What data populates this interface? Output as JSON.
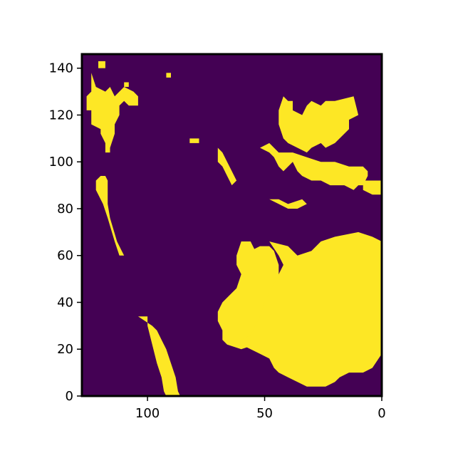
{
  "chart_data": {
    "type": "heatmap",
    "title": "",
    "xlabel": "",
    "ylabel": "",
    "xlim": [
      128,
      0
    ],
    "ylim": [
      0,
      146
    ],
    "x_inverted": true,
    "xticks": [
      {
        "value": 100,
        "label": "100"
      },
      {
        "value": 50,
        "label": "50"
      },
      {
        "value": 0,
        "label": "0"
      }
    ],
    "yticks": [
      {
        "value": 0,
        "label": "0"
      },
      {
        "value": 20,
        "label": "20"
      },
      {
        "value": 40,
        "label": "40"
      },
      {
        "value": 60,
        "label": "60"
      },
      {
        "value": 80,
        "label": "80"
      },
      {
        "value": 100,
        "label": "100"
      },
      {
        "value": 120,
        "label": "120"
      },
      {
        "value": 140,
        "label": "140"
      }
    ],
    "grid": false,
    "colormap": "viridis",
    "colors": {
      "background": "#440154",
      "land": "#fde725",
      "axes": "#000000"
    },
    "values": "binary land mask: 0 = water (purple), 1 = land (yellow)",
    "regions": [
      {
        "name": "north-america-west-coast",
        "value": 1,
        "polygon": [
          [
            124,
            138
          ],
          [
            122,
            132
          ],
          [
            118,
            130
          ],
          [
            116,
            132
          ],
          [
            114,
            128
          ],
          [
            110,
            132
          ],
          [
            106,
            130
          ],
          [
            104,
            128
          ],
          [
            104,
            124
          ],
          [
            108,
            124
          ],
          [
            110,
            126
          ],
          [
            112,
            124
          ],
          [
            112,
            120
          ],
          [
            114,
            116
          ],
          [
            114,
            112
          ],
          [
            116,
            106
          ],
          [
            116,
            104
          ],
          [
            118,
            104
          ],
          [
            118,
            108
          ],
          [
            120,
            112
          ],
          [
            120,
            114
          ],
          [
            124,
            116
          ],
          [
            124,
            122
          ],
          [
            126,
            122
          ],
          [
            126,
            128
          ],
          [
            124,
            130
          ]
        ]
      },
      {
        "name": "north-america-upper",
        "value": 1,
        "polygon": [
          [
            121,
            140
          ],
          [
            118,
            140
          ],
          [
            118,
            143
          ],
          [
            121,
            143
          ]
        ]
      },
      {
        "name": "baja-california",
        "value": 1,
        "polygon": [
          [
            122,
            92
          ],
          [
            120,
            94
          ],
          [
            118,
            94
          ],
          [
            117,
            92
          ],
          [
            117,
            82
          ],
          [
            116,
            76
          ],
          [
            113,
            66
          ],
          [
            111,
            62
          ],
          [
            110,
            60
          ],
          [
            112,
            60
          ],
          [
            114,
            66
          ],
          [
            117,
            76
          ],
          [
            119,
            82
          ],
          [
            122,
            88
          ]
        ]
      },
      {
        "name": "south-america-west-coast",
        "value": 1,
        "polygon": [
          [
            104,
            34
          ],
          [
            100,
            34
          ],
          [
            100,
            30
          ],
          [
            98,
            22
          ],
          [
            96,
            14
          ],
          [
            94,
            8
          ],
          [
            93,
            2
          ],
          [
            92,
            0
          ],
          [
            86,
            0
          ],
          [
            87,
            2
          ],
          [
            88,
            8
          ],
          [
            90,
            14
          ],
          [
            92,
            20
          ],
          [
            94,
            24
          ],
          [
            96,
            28
          ],
          [
            98,
            30
          ]
        ]
      },
      {
        "name": "europe-mainland",
        "value": 1,
        "polygon": [
          [
            42,
            128
          ],
          [
            40,
            126
          ],
          [
            38,
            126
          ],
          [
            38,
            122
          ],
          [
            34,
            120
          ],
          [
            32,
            124
          ],
          [
            30,
            126
          ],
          [
            26,
            124
          ],
          [
            24,
            126
          ],
          [
            20,
            126
          ],
          [
            12,
            128
          ],
          [
            11,
            124
          ],
          [
            10,
            120
          ],
          [
            14,
            118
          ],
          [
            14,
            114
          ],
          [
            20,
            108
          ],
          [
            24,
            106
          ],
          [
            26,
            108
          ],
          [
            30,
            106
          ],
          [
            32,
            104
          ],
          [
            36,
            106
          ],
          [
            40,
            108
          ],
          [
            42,
            110
          ],
          [
            44,
            116
          ],
          [
            44,
            122
          ]
        ]
      },
      {
        "name": "iberia-and-mediterranean",
        "value": 1,
        "polygon": [
          [
            52,
            106
          ],
          [
            48,
            104
          ],
          [
            46,
            102
          ],
          [
            44,
            98
          ],
          [
            42,
            96
          ],
          [
            38,
            100
          ],
          [
            36,
            96
          ],
          [
            34,
            94
          ],
          [
            30,
            92
          ],
          [
            26,
            92
          ],
          [
            22,
            90
          ],
          [
            16,
            90
          ],
          [
            12,
            88
          ],
          [
            10,
            90
          ],
          [
            8,
            90
          ],
          [
            6,
            94
          ],
          [
            6,
            96
          ],
          [
            8,
            98
          ],
          [
            14,
            98
          ],
          [
            20,
            100
          ],
          [
            26,
            100
          ],
          [
            32,
            102
          ],
          [
            38,
            104
          ],
          [
            44,
            104
          ],
          [
            48,
            108
          ]
        ]
      },
      {
        "name": "middle-east-islands",
        "value": 1,
        "polygon": [
          [
            8,
            92
          ],
          [
            4,
            92
          ],
          [
            0,
            92
          ],
          [
            0,
            86
          ],
          [
            4,
            86
          ],
          [
            8,
            88
          ]
        ]
      },
      {
        "name": "north-africa-coast",
        "value": 1,
        "polygon": [
          [
            48,
            84
          ],
          [
            44,
            82
          ],
          [
            40,
            80
          ],
          [
            36,
            80
          ],
          [
            32,
            82
          ],
          [
            34,
            84
          ],
          [
            40,
            82
          ],
          [
            44,
            84
          ]
        ]
      },
      {
        "name": "africa-and-arabia",
        "value": 1,
        "polygon": [
          [
            60,
            66
          ],
          [
            56,
            66
          ],
          [
            54,
            62
          ],
          [
            54,
            58
          ],
          [
            52,
            54
          ],
          [
            52,
            50
          ],
          [
            56,
            52
          ],
          [
            58,
            56
          ],
          [
            58,
            60
          ],
          [
            56,
            62
          ],
          [
            52,
            64
          ],
          [
            48,
            64
          ],
          [
            46,
            62
          ],
          [
            44,
            56
          ],
          [
            44,
            50
          ],
          [
            42,
            46
          ],
          [
            40,
            42
          ],
          [
            40,
            38
          ],
          [
            42,
            34
          ],
          [
            44,
            30
          ],
          [
            46,
            26
          ],
          [
            48,
            24
          ],
          [
            54,
            22
          ],
          [
            60,
            20
          ],
          [
            66,
            22
          ],
          [
            68,
            24
          ],
          [
            68,
            28
          ],
          [
            70,
            32
          ],
          [
            70,
            36
          ],
          [
            68,
            40
          ],
          [
            66,
            42
          ],
          [
            64,
            44
          ],
          [
            62,
            46
          ],
          [
            60,
            52
          ],
          [
            62,
            56
          ],
          [
            62,
            60
          ]
        ]
      },
      {
        "name": "africa-east-body",
        "value": 1,
        "polygon": [
          [
            48,
            66
          ],
          [
            40,
            64
          ],
          [
            36,
            60
          ],
          [
            30,
            62
          ],
          [
            26,
            66
          ],
          [
            20,
            68
          ],
          [
            10,
            70
          ],
          [
            4,
            68
          ],
          [
            0,
            66
          ],
          [
            0,
            18
          ],
          [
            4,
            12
          ],
          [
            8,
            10
          ],
          [
            14,
            10
          ],
          [
            18,
            8
          ],
          [
            20,
            6
          ],
          [
            24,
            4
          ],
          [
            32,
            4
          ],
          [
            36,
            6
          ],
          [
            40,
            8
          ],
          [
            44,
            10
          ],
          [
            46,
            12
          ],
          [
            48,
            16
          ],
          [
            52,
            18
          ],
          [
            56,
            20
          ],
          [
            60,
            22
          ],
          [
            60,
            24
          ],
          [
            56,
            26
          ],
          [
            54,
            30
          ],
          [
            52,
            34
          ],
          [
            50,
            40
          ],
          [
            48,
            44
          ],
          [
            46,
            48
          ],
          [
            44,
            52
          ],
          [
            42,
            56
          ],
          [
            44,
            60
          ]
        ]
      },
      {
        "name": "red-sea-islands",
        "value": 1,
        "polygon": [
          [
            70,
            106
          ],
          [
            68,
            104
          ],
          [
            66,
            100
          ],
          [
            64,
            96
          ],
          [
            62,
            92
          ],
          [
            64,
            90
          ],
          [
            66,
            94
          ],
          [
            68,
            98
          ],
          [
            70,
            100
          ]
        ]
      },
      {
        "name": "small-island-1",
        "value": 1,
        "polygon": [
          [
            110,
            134
          ],
          [
            108,
            134
          ],
          [
            108,
            132
          ],
          [
            110,
            132
          ]
        ]
      },
      {
        "name": "small-island-2",
        "value": 1,
        "polygon": [
          [
            92,
            138
          ],
          [
            90,
            138
          ],
          [
            90,
            136
          ],
          [
            92,
            136
          ]
        ]
      },
      {
        "name": "small-island-3",
        "value": 1,
        "polygon": [
          [
            82,
            110
          ],
          [
            78,
            110
          ],
          [
            78,
            108
          ],
          [
            82,
            108
          ]
        ]
      }
    ]
  }
}
